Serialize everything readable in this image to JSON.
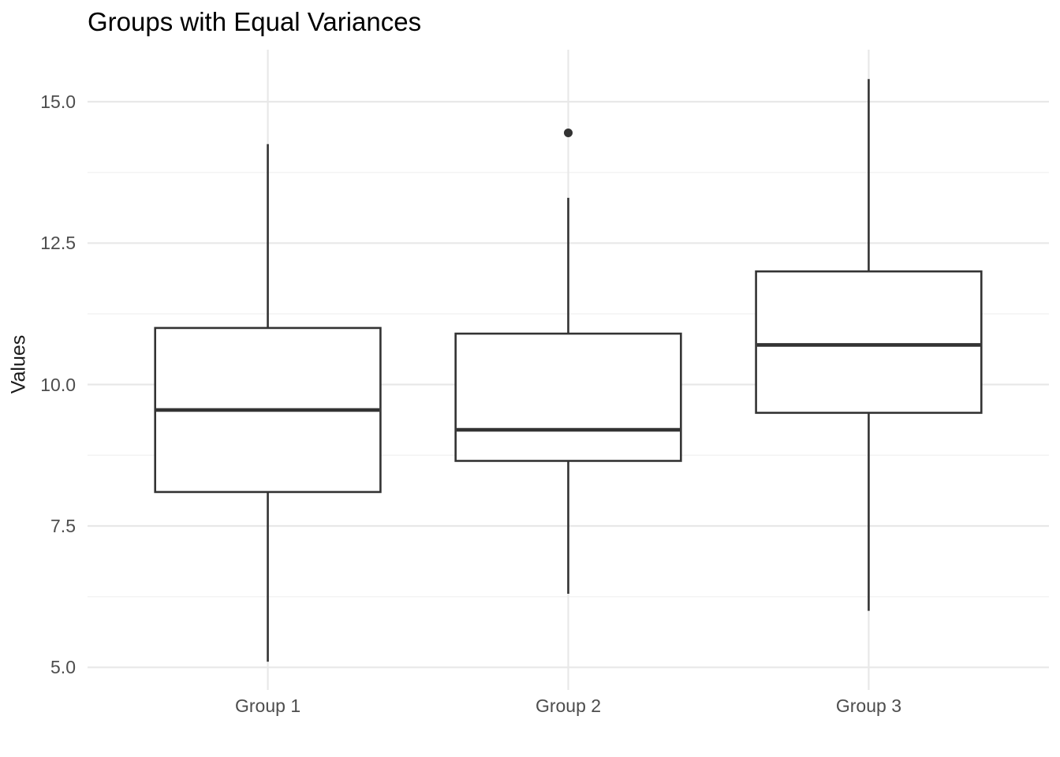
{
  "chart_data": {
    "type": "boxplot",
    "title": "Groups with Equal Variances",
    "xlabel": "",
    "ylabel": "Values",
    "categories": [
      "Group 1",
      "Group 2",
      "Group 3"
    ],
    "y_ticks": [
      5.0,
      7.5,
      10.0,
      12.5,
      15.0
    ],
    "y_tick_labels": [
      "5.0",
      "7.5",
      "10.0",
      "12.5",
      "15.0"
    ],
    "y_minor_ticks": [
      6.25,
      8.75,
      11.25,
      13.75
    ],
    "ylim": [
      4.6,
      15.92
    ],
    "grid": true,
    "legend": false,
    "series": [
      {
        "name": "Group 1",
        "whisker_low": 5.1,
        "q1": 8.1,
        "median": 9.55,
        "q3": 11.0,
        "whisker_high": 14.25,
        "outliers": []
      },
      {
        "name": "Group 2",
        "whisker_low": 6.3,
        "q1": 8.65,
        "median": 9.2,
        "q3": 10.9,
        "whisker_high": 13.3,
        "outliers": [
          14.45
        ]
      },
      {
        "name": "Group 3",
        "whisker_low": 6.0,
        "q1": 9.5,
        "median": 10.7,
        "q3": 12.0,
        "whisker_high": 15.4,
        "outliers": []
      }
    ],
    "colors": {
      "box_stroke": "#333333",
      "box_fill": "#ffffff",
      "median": "#333333",
      "outlier": "#333333",
      "grid_major": "#e8e8e8",
      "grid_minor": "#f3f3f3",
      "axis_text": "#4d4d4d",
      "title_text": "#000000",
      "background": "#ffffff"
    }
  }
}
